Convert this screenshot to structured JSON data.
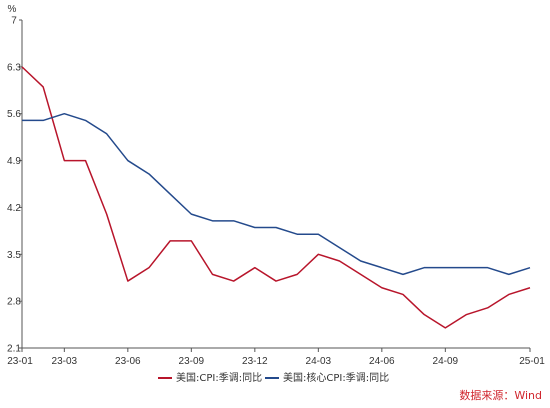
{
  "chart_data": {
    "type": "line",
    "x": [
      "23-01",
      "23-02",
      "23-03",
      "23-04",
      "23-05",
      "23-06",
      "23-07",
      "23-08",
      "23-09",
      "23-10",
      "23-11",
      "23-12",
      "24-01",
      "24-02",
      "24-03",
      "24-04",
      "24-05",
      "24-06",
      "24-07",
      "24-08",
      "24-09",
      "24-10",
      "24-11",
      "24-12",
      "25-01"
    ],
    "x_tick_labels": [
      "23-01",
      "23-03",
      "23-06",
      "23-09",
      "23-12",
      "24-03",
      "24-06",
      "24-09",
      "25-01"
    ],
    "y_tick_labels": [
      "2.1",
      "2.8",
      "3.5",
      "4.2",
      "4.9",
      "5.6",
      "6.3",
      "7"
    ],
    "yunit": "%",
    "ylim": [
      2.1,
      7
    ],
    "grid": false,
    "legend_position": "bottom",
    "series": [
      {
        "name": "美国:CPI:季调:同比",
        "color": "#b8152b",
        "values": [
          6.3,
          6.0,
          4.9,
          4.9,
          4.1,
          3.1,
          3.3,
          3.7,
          3.7,
          3.2,
          3.1,
          3.3,
          3.1,
          3.2,
          3.5,
          3.4,
          3.2,
          3.0,
          2.9,
          2.6,
          2.4,
          2.6,
          2.7,
          2.9,
          3.0
        ]
      },
      {
        "name": "美国:核心CPI:季调:同比",
        "color": "#244a8c",
        "values": [
          5.5,
          5.5,
          5.6,
          5.5,
          5.3,
          4.9,
          4.7,
          4.4,
          4.1,
          4.0,
          4.0,
          3.9,
          3.9,
          3.8,
          3.8,
          3.6,
          3.4,
          3.3,
          3.2,
          3.3,
          3.3,
          3.3,
          3.3,
          3.2,
          3.3
        ]
      }
    ]
  },
  "source": "数据来源：Wind"
}
